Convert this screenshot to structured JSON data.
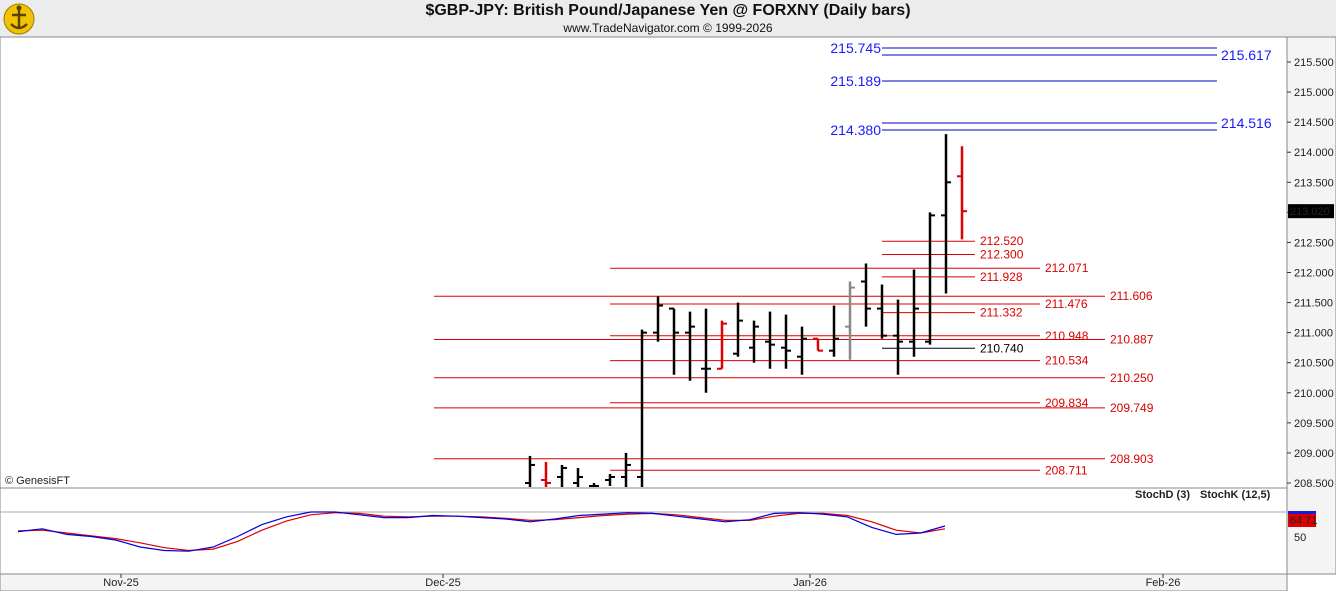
{
  "header": {
    "title": "$GBP-JPY:  British Pound/Japanese Yen @ FORXNY  (Daily bars)",
    "subtitle": "www.TradeNavigator.com © 1999-2026"
  },
  "watermark": "© GenesisFT",
  "colors": {
    "level_red": "#dd0000",
    "level_blue": "#0000cc",
    "stoch_d": "#dd0000",
    "stoch_k": "#0000dd"
  },
  "chart_data": {
    "type": "ohlc-bar",
    "price_axis": {
      "ticks": [
        "215.500",
        "215.000",
        "214.500",
        "214.000",
        "213.500",
        "213.000",
        "212.500",
        "212.000",
        "211.500",
        "211.000",
        "210.500",
        "210.000",
        "209.500",
        "209.000",
        "208.500"
      ],
      "last_price": "213.020"
    },
    "x_axis": {
      "labels": [
        "Nov-25",
        "Dec-25",
        "Jan-26",
        "Feb-26"
      ]
    },
    "blue_levels": [
      {
        "value": "215.745",
        "label_side": "left"
      },
      {
        "value": "215.617",
        "label_side": "right"
      },
      {
        "value": "215.189",
        "label_side": "left"
      },
      {
        "value": "214.516",
        "label_side": "right"
      },
      {
        "value": "214.380",
        "label_side": "left"
      }
    ],
    "red_levels": [
      {
        "value": "212.520"
      },
      {
        "value": "212.300"
      },
      {
        "value": "212.071"
      },
      {
        "value": "211.928"
      },
      {
        "value": "211.606"
      },
      {
        "value": "211.476"
      },
      {
        "value": "211.332"
      },
      {
        "value": "210.948"
      },
      {
        "value": "210.887"
      },
      {
        "value": "210.534"
      },
      {
        "value": "210.250"
      },
      {
        "value": "209.834"
      },
      {
        "value": "209.749"
      },
      {
        "value": "208.903"
      },
      {
        "value": "208.711"
      }
    ],
    "black_levels": [
      {
        "value": "210.740"
      }
    ],
    "bars": [
      {
        "date": "Dec-15",
        "o": 208.5,
        "h": 208.95,
        "l": 208.4,
        "c": 208.8,
        "dir": "up"
      },
      {
        "date": "Dec-16",
        "o": 208.55,
        "h": 208.85,
        "l": 208.4,
        "c": 208.5,
        "dir": "down"
      },
      {
        "date": "Dec-17",
        "o": 208.6,
        "h": 208.8,
        "l": 208.4,
        "c": 208.75,
        "dir": "up"
      },
      {
        "date": "Dec-18",
        "o": 208.5,
        "h": 208.75,
        "l": 208.4,
        "c": 208.6,
        "dir": "up"
      },
      {
        "date": "Dec-19",
        "o": 208.45,
        "h": 208.5,
        "l": 208.4,
        "c": 208.45,
        "dir": "up"
      },
      {
        "date": "Dec-22",
        "o": 208.55,
        "h": 208.65,
        "l": 208.45,
        "c": 208.6,
        "dir": "up"
      },
      {
        "date": "Dec-23",
        "o": 208.6,
        "h": 209.0,
        "l": 208.4,
        "c": 208.8,
        "dir": "up"
      },
      {
        "date": "Dec-24",
        "o": 208.6,
        "h": 211.05,
        "l": 208.4,
        "c": 211.0,
        "dir": "up"
      },
      {
        "date": "Dec-26",
        "o": 211.0,
        "h": 211.6,
        "l": 210.85,
        "c": 211.45,
        "dir": "up"
      },
      {
        "date": "Dec-29",
        "o": 211.4,
        "h": 211.4,
        "l": 210.3,
        "c": 211.0,
        "dir": "up"
      },
      {
        "date": "Dec-30",
        "o": 211.0,
        "h": 211.35,
        "l": 210.2,
        "c": 211.1,
        "dir": "up"
      },
      {
        "date": "Dec-31",
        "o": 210.4,
        "h": 211.4,
        "l": 210.0,
        "c": 210.4,
        "dir": "up"
      },
      {
        "date": "Jan-01",
        "o": 210.4,
        "h": 211.2,
        "l": 210.4,
        "c": 211.15,
        "dir": "down"
      },
      {
        "date": "Jan-02",
        "o": 210.65,
        "h": 211.5,
        "l": 210.6,
        "c": 211.2,
        "dir": "up"
      },
      {
        "date": "Jan-05",
        "o": 210.75,
        "h": 211.2,
        "l": 210.5,
        "c": 211.1,
        "dir": "up"
      },
      {
        "date": "Jan-06",
        "o": 210.85,
        "h": 211.35,
        "l": 210.4,
        "c": 210.8,
        "dir": "up"
      },
      {
        "date": "Jan-07",
        "o": 210.75,
        "h": 211.3,
        "l": 210.4,
        "c": 210.7,
        "dir": "up"
      },
      {
        "date": "Jan-08",
        "o": 210.6,
        "h": 211.1,
        "l": 210.3,
        "c": 210.9,
        "dir": "up"
      },
      {
        "date": "Jan-09",
        "o": 210.9,
        "h": 210.9,
        "l": 210.7,
        "c": 210.7,
        "dir": "down"
      },
      {
        "date": "Jan-12",
        "o": 210.7,
        "h": 211.45,
        "l": 210.6,
        "c": 210.9,
        "dir": "up"
      },
      {
        "date": "Jan-13",
        "o": 211.1,
        "h": 211.85,
        "l": 210.55,
        "c": 211.75,
        "dir": "flat"
      },
      {
        "date": "Jan-14",
        "o": 211.85,
        "h": 212.15,
        "l": 211.1,
        "c": 211.4,
        "dir": "up"
      },
      {
        "date": "Jan-15",
        "o": 211.4,
        "h": 211.8,
        "l": 210.9,
        "c": 210.95,
        "dir": "up"
      },
      {
        "date": "Jan-16",
        "o": 210.95,
        "h": 211.55,
        "l": 210.3,
        "c": 210.85,
        "dir": "up"
      },
      {
        "date": "Jan-19",
        "o": 210.85,
        "h": 212.05,
        "l": 210.6,
        "c": 211.4,
        "dir": "up"
      },
      {
        "date": "Jan-20",
        "o": 210.85,
        "h": 213.0,
        "l": 210.8,
        "c": 212.95,
        "dir": "up"
      },
      {
        "date": "Jan-21",
        "o": 212.95,
        "h": 214.3,
        "l": 211.65,
        "c": 213.5,
        "dir": "up"
      },
      {
        "date": "Jan-22",
        "o": 213.6,
        "h": 214.1,
        "l": 212.55,
        "c": 213.02,
        "dir": "down"
      }
    ],
    "stochastic": {
      "labels": {
        "d": "StochD (3)",
        "k": "StochK (12,5)"
      },
      "tick": "50",
      "last_value": "64.71",
      "k": [
        52,
        56,
        48,
        45,
        40,
        30,
        25,
        24,
        30,
        45,
        62,
        73,
        80,
        80,
        76,
        72,
        72,
        75,
        74,
        72,
        70,
        66,
        70,
        75,
        77,
        79,
        78,
        74,
        70,
        66,
        69,
        78,
        79,
        77,
        73,
        58,
        48,
        50,
        60
      ],
      "d": [
        53,
        54,
        50,
        46,
        42,
        36,
        29,
        25,
        27,
        38,
        54,
        67,
        76,
        79,
        78,
        74,
        73,
        74,
        74,
        73,
        71,
        68,
        69,
        72,
        75,
        77,
        78,
        76,
        72,
        68,
        68,
        74,
        78,
        78,
        75,
        66,
        54,
        50,
        56
      ]
    }
  }
}
